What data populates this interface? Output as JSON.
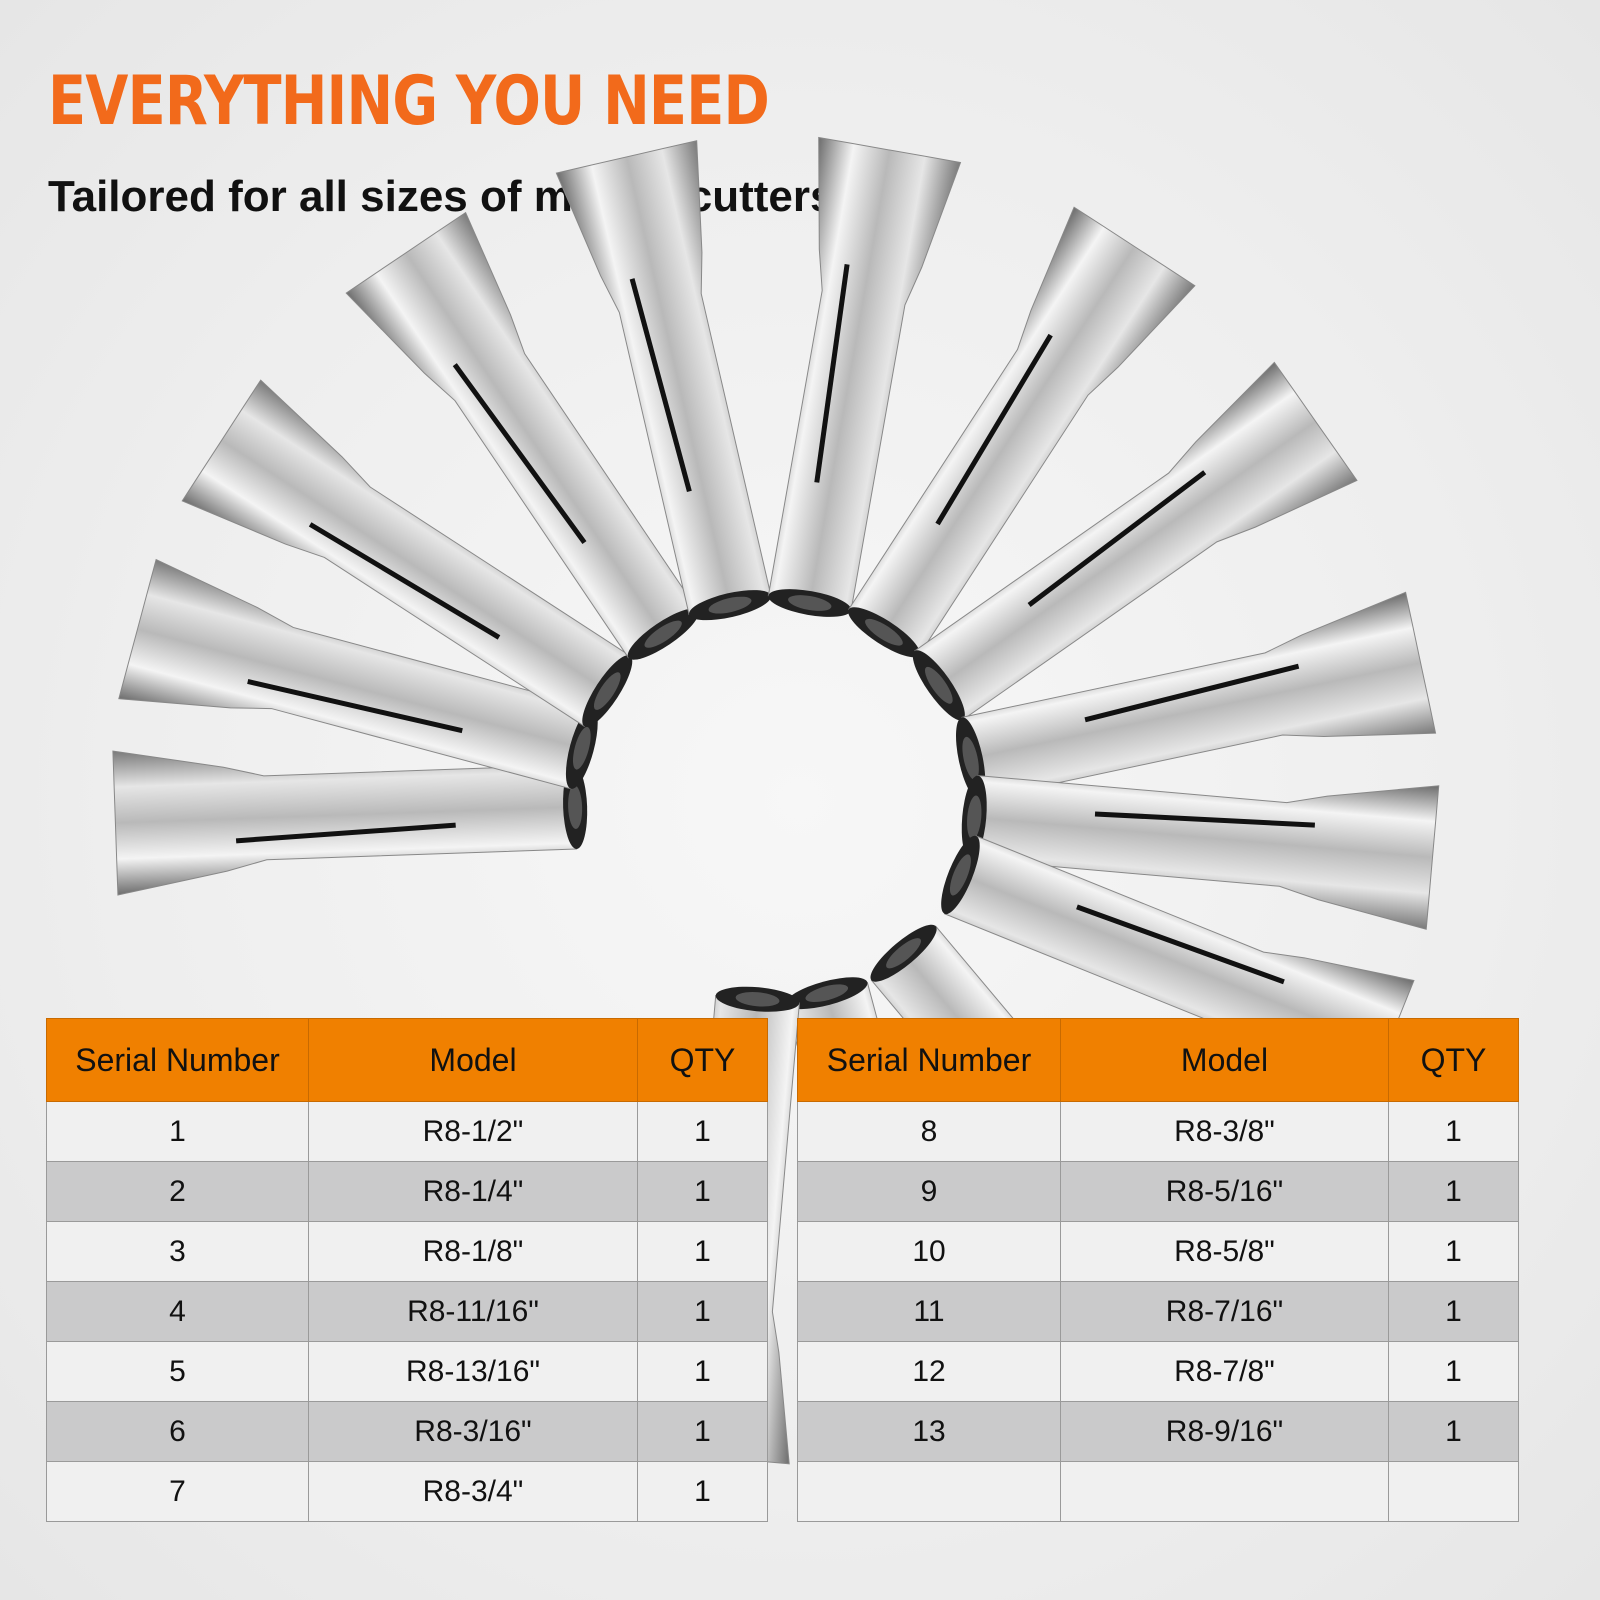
{
  "header": {
    "title": "EVERYTHING YOU NEED",
    "subtitle": "Tailored for all sizes of milling cutters"
  },
  "colors": {
    "accent": "#f26a1b",
    "table_header": "#f08000",
    "row_light": "#f0f0f0",
    "row_dark": "#cacacb"
  },
  "table": {
    "columns": [
      "Serial Number",
      "Model",
      "QTY"
    ],
    "left_rows": [
      {
        "serial": "1",
        "model": "R8-1/2\"",
        "qty": "1"
      },
      {
        "serial": "2",
        "model": "R8-1/4\"",
        "qty": "1"
      },
      {
        "serial": "3",
        "model": "R8-1/8\"",
        "qty": "1"
      },
      {
        "serial": "4",
        "model": "R8-11/16\"",
        "qty": "1"
      },
      {
        "serial": "5",
        "model": "R8-13/16\"",
        "qty": "1"
      },
      {
        "serial": "6",
        "model": "R8-3/16\"",
        "qty": "1"
      },
      {
        "serial": "7",
        "model": "R8-3/4\"",
        "qty": "1"
      }
    ],
    "right_rows": [
      {
        "serial": "8",
        "model": "R8-3/8\"",
        "qty": "1"
      },
      {
        "serial": "9",
        "model": "R8-5/16\"",
        "qty": "1"
      },
      {
        "serial": "10",
        "model": "R8-5/8\"",
        "qty": "1"
      },
      {
        "serial": "11",
        "model": "R8-7/16\"",
        "qty": "1"
      },
      {
        "serial": "12",
        "model": "R8-7/8\"",
        "qty": "1"
      },
      {
        "serial": "13",
        "model": "R8-9/16\"",
        "qty": "1"
      },
      {
        "serial": "",
        "model": "",
        "qty": ""
      }
    ]
  }
}
